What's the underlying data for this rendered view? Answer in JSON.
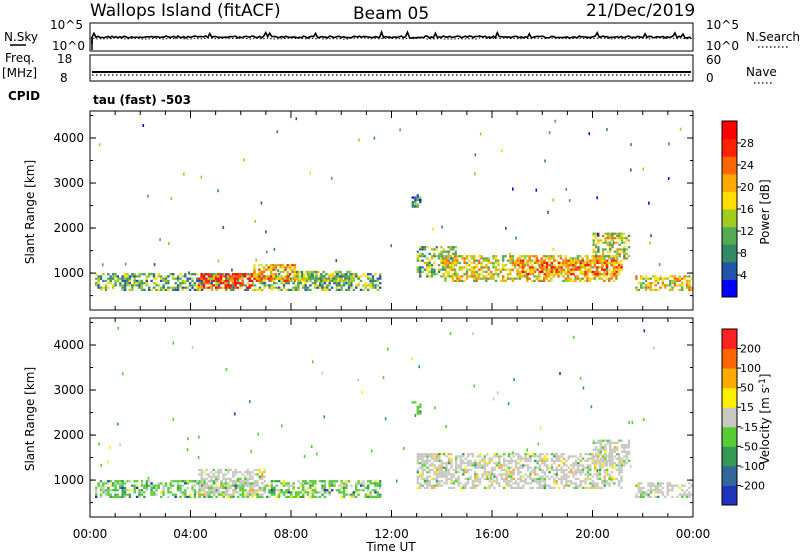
{
  "header": {
    "station": "Wallops Island (fitACF)",
    "beam": "Beam 05",
    "date": "21/Dec/2019"
  },
  "top_panels": {
    "nsky_label": "N.Sky",
    "nsearch_label": "N.Search",
    "scale_top_left": "10^5",
    "scale_bottom_left": "10^0",
    "scale_top_right": "10^5",
    "scale_bottom_right": "10^0",
    "freq_label": "Freq.",
    "freq_unit": "[MHz]",
    "freq_top": "18",
    "freq_bottom": "8",
    "nave_label": "Nave",
    "nave_top": "60",
    "nave_bottom": "0",
    "cpid_label": "CPID",
    "cpid_value": "tau (fast) -503"
  },
  "x_axis": {
    "label": "Time UT",
    "ticks": [
      "00:00",
      "04:00",
      "08:00",
      "12:00",
      "16:00",
      "20:00",
      "00:00"
    ]
  },
  "chart_data": [
    {
      "type": "heatmap",
      "name": "power-panel",
      "xlabel": "Time UT",
      "ylabel": "Slant Range [km]",
      "xlim": [
        0,
        24
      ],
      "ylim": [
        180,
        4600
      ],
      "yticks": [
        "1000",
        "2000",
        "3000",
        "4000"
      ],
      "colorbar": {
        "label": "Power [dB]",
        "ticks": [
          "4",
          "8",
          "12",
          "16",
          "20",
          "24",
          "28"
        ],
        "range": [
          0,
          32
        ],
        "colors": [
          "#0000ff",
          "#2255aa",
          "#338866",
          "#55aa55",
          "#a0cc20",
          "#ffdd00",
          "#ffaa00",
          "#ff6600",
          "#ff2200",
          "#ff0000"
        ]
      },
      "regions": [
        {
          "t0": 0.2,
          "t1": 11.6,
          "r0": 600,
          "r1": 1000,
          "level": 0.35
        },
        {
          "t0": 4.3,
          "t1": 6.5,
          "r0": 650,
          "r1": 1000,
          "level": 0.85
        },
        {
          "t0": 6.5,
          "t1": 8.2,
          "r0": 800,
          "r1": 1200,
          "level": 0.62
        },
        {
          "t0": 8.2,
          "t1": 10.4,
          "r0": 800,
          "r1": 1050,
          "level": 0.45
        },
        {
          "t0": 12.8,
          "t1": 13.2,
          "r0": 2450,
          "r1": 2750,
          "level": 0.22
        },
        {
          "t0": 13.0,
          "t1": 14.6,
          "r0": 900,
          "r1": 1600,
          "level": 0.4
        },
        {
          "t0": 14.0,
          "t1": 21.0,
          "r0": 800,
          "r1": 1400,
          "level": 0.55
        },
        {
          "t0": 17.0,
          "t1": 21.2,
          "r0": 950,
          "r1": 1300,
          "level": 0.72
        },
        {
          "t0": 20.0,
          "t1": 21.5,
          "r0": 1300,
          "r1": 1900,
          "level": 0.5
        },
        {
          "t0": 21.7,
          "t1": 24.0,
          "r0": 600,
          "r1": 950,
          "level": 0.55
        }
      ]
    },
    {
      "type": "heatmap",
      "name": "velocity-panel",
      "xlabel": "Time UT",
      "ylabel": "Slant Range [km]",
      "xlim": [
        0,
        24
      ],
      "ylim": [
        180,
        4600
      ],
      "yticks": [
        "1000",
        "2000",
        "3000",
        "4000"
      ],
      "colorbar": {
        "label": "Velocity [m s^-1]",
        "ticks": [
          "200",
          "100",
          "50",
          "15",
          "-15",
          "-50",
          "-100",
          "-200"
        ],
        "range": [
          -250,
          250
        ],
        "colors": [
          "#2233bb",
          "#336699",
          "#339955",
          "#55cc33",
          "#c8c8c0",
          "#ffee00",
          "#ffaa00",
          "#ff6600",
          "#ff2222"
        ]
      },
      "regions": [
        {
          "t0": 0.2,
          "t1": 11.6,
          "r0": 600,
          "r1": 1000,
          "kind": "green"
        },
        {
          "t0": 4.3,
          "t1": 7.0,
          "r0": 650,
          "r1": 1250,
          "kind": "grey"
        },
        {
          "t0": 12.8,
          "t1": 13.2,
          "r0": 2450,
          "r1": 2750,
          "kind": "green"
        },
        {
          "t0": 13.0,
          "t1": 21.2,
          "r0": 800,
          "r1": 1600,
          "kind": "grey"
        },
        {
          "t0": 20.0,
          "t1": 21.5,
          "r0": 1300,
          "r1": 1900,
          "kind": "grey"
        },
        {
          "t0": 21.7,
          "t1": 24.0,
          "r0": 600,
          "r1": 950,
          "kind": "grey"
        }
      ]
    }
  ]
}
